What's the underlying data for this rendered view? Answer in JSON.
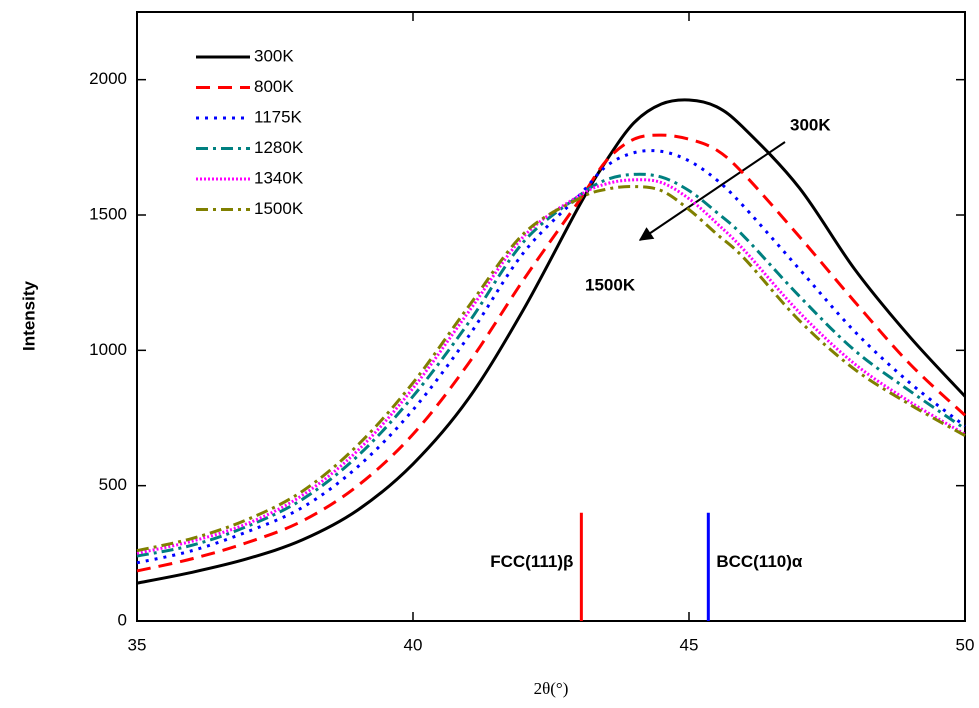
{
  "chart_data": {
    "type": "line",
    "xlabel": "2θ(°)",
    "ylabel": "Intensity",
    "x": [
      35,
      36,
      37,
      38,
      39,
      40,
      41,
      42,
      43,
      43.5,
      44,
      44.5,
      45,
      45.5,
      46,
      47,
      48,
      49,
      50
    ],
    "series": [
      {
        "name": "300K",
        "color": "#000000",
        "dash": "solid",
        "values": [
          140,
          180,
          230,
          300,
          410,
          580,
          820,
          1150,
          1530,
          1700,
          1840,
          1910,
          1925,
          1900,
          1820,
          1600,
          1300,
          1050,
          830
        ]
      },
      {
        "name": "800K",
        "color": "#ff0000",
        "dash": "dashed",
        "values": [
          185,
          230,
          290,
          370,
          500,
          690,
          950,
          1260,
          1550,
          1700,
          1780,
          1795,
          1780,
          1740,
          1650,
          1420,
          1180,
          950,
          760
        ]
      },
      {
        "name": "1175K",
        "color": "#0000ff",
        "dash": "dotted",
        "values": [
          215,
          260,
          330,
          420,
          570,
          780,
          1050,
          1360,
          1570,
          1680,
          1730,
          1735,
          1700,
          1630,
          1530,
          1300,
          1070,
          880,
          720
        ]
      },
      {
        "name": "1280K",
        "color": "#008080",
        "dash": "dashdot",
        "values": [
          240,
          280,
          350,
          450,
          610,
          830,
          1100,
          1400,
          1570,
          1630,
          1650,
          1640,
          1590,
          1510,
          1420,
          1200,
          1000,
          850,
          710
        ]
      },
      {
        "name": "1340K",
        "color": "#ff00ff",
        "dash": "densedot",
        "values": [
          250,
          295,
          360,
          465,
          630,
          860,
          1140,
          1420,
          1570,
          1615,
          1630,
          1620,
          1560,
          1470,
          1370,
          1140,
          950,
          810,
          690
        ]
      },
      {
        "name": "1500K",
        "color": "#808000",
        "dash": "dashdot",
        "values": [
          260,
          305,
          375,
          480,
          650,
          880,
          1160,
          1430,
          1560,
          1595,
          1605,
          1590,
          1520,
          1430,
          1340,
          1110,
          930,
          800,
          685
        ]
      }
    ],
    "xlim": [
      35,
      50
    ],
    "xticks": [
      35,
      40,
      45,
      50
    ],
    "ylim": [
      0,
      2250
    ],
    "yticks": [
      0,
      500,
      1000,
      1500,
      2000
    ],
    "legend": "upper left",
    "reference_lines": [
      {
        "label": "FCC(111)β",
        "x": 43.05,
        "height": 400,
        "color": "#ff0000"
      },
      {
        "label": "BCC(110)α",
        "x": 45.35,
        "height": 400,
        "color": "#0000ff"
      }
    ],
    "arrow_labels": [
      "300K",
      "1500K"
    ]
  }
}
